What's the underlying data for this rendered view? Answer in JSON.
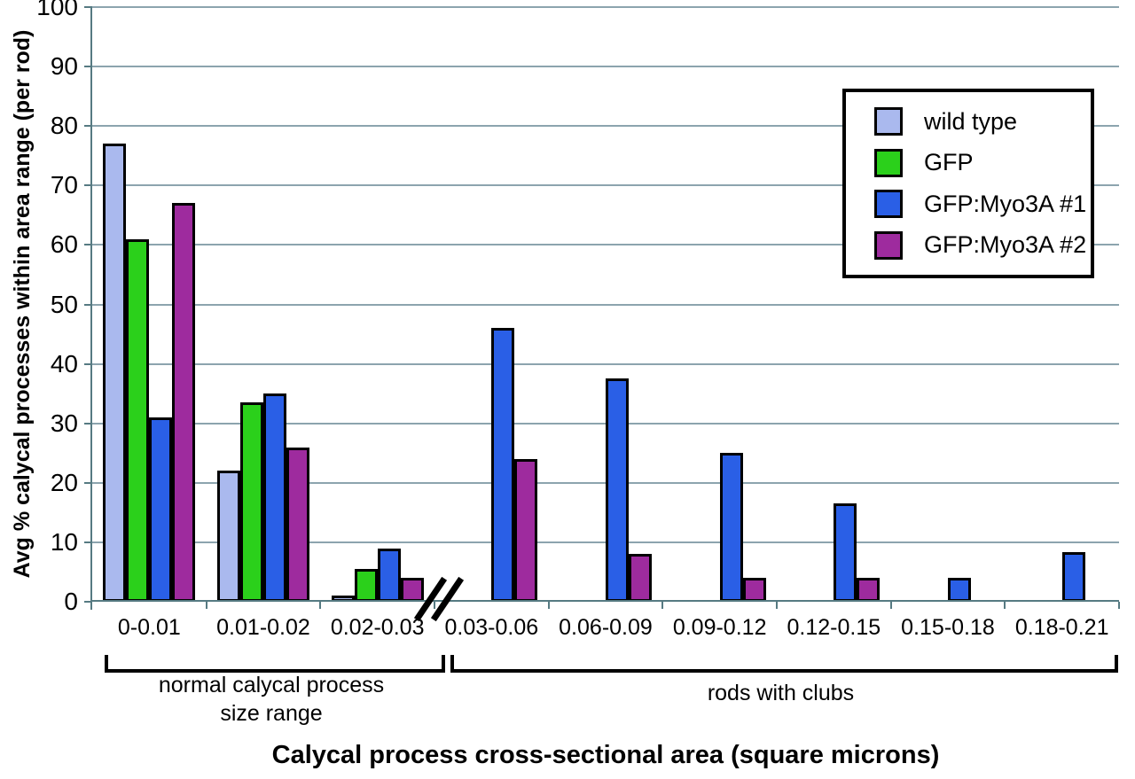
{
  "chart_data": {
    "type": "bar",
    "title": "",
    "xlabel": "Calycal process cross-sectional area (square microns)",
    "ylabel": "Avg % calycal processes within area range (per rod)",
    "ylim": [
      0,
      100
    ],
    "ytick_step": 10,
    "grid": true,
    "legend_position": "top-right",
    "axis_break_after_category": "0.02-0.03",
    "categories": [
      "0-0.01",
      "0.01-0.02",
      "0.02-0.03",
      "0.03-0.06",
      "0.06-0.09",
      "0.09-0.12",
      "0.12-0.15",
      "0.15-0.18",
      "0.18-0.21"
    ],
    "series": [
      {
        "name": "wild type",
        "color": "#aab9ee",
        "values": [
          77,
          22,
          1,
          0,
          0,
          0,
          0,
          0,
          0
        ]
      },
      {
        "name": "GFP",
        "color": "#2bd01b",
        "values": [
          61,
          33.5,
          5.5,
          0,
          0,
          0,
          0,
          0,
          0
        ]
      },
      {
        "name": "GFP:Myo3A #1",
        "color": "#2a5fe6",
        "values": [
          31,
          35,
          9,
          46,
          37.5,
          25,
          16.5,
          4,
          8.3
        ]
      },
      {
        "name": "GFP:Myo3A #2",
        "color": "#9e2b9e",
        "values": [
          67,
          26,
          4,
          24,
          8,
          4,
          4,
          0,
          0
        ]
      }
    ],
    "annotations": [
      {
        "text_lines": [
          "normal calycal process",
          "size range"
        ],
        "from_category": "0-0.01",
        "to_category": "0.02-0.03"
      },
      {
        "text_lines": [
          "rods with clubs"
        ],
        "from_category": "0.03-0.06",
        "to_category": "0.18-0.21"
      }
    ]
  },
  "colors": {
    "grid": "#8ca4ae",
    "axis": "#567a82",
    "bar_border": "#000000",
    "legend_border": "#000000",
    "text": "#000000"
  }
}
